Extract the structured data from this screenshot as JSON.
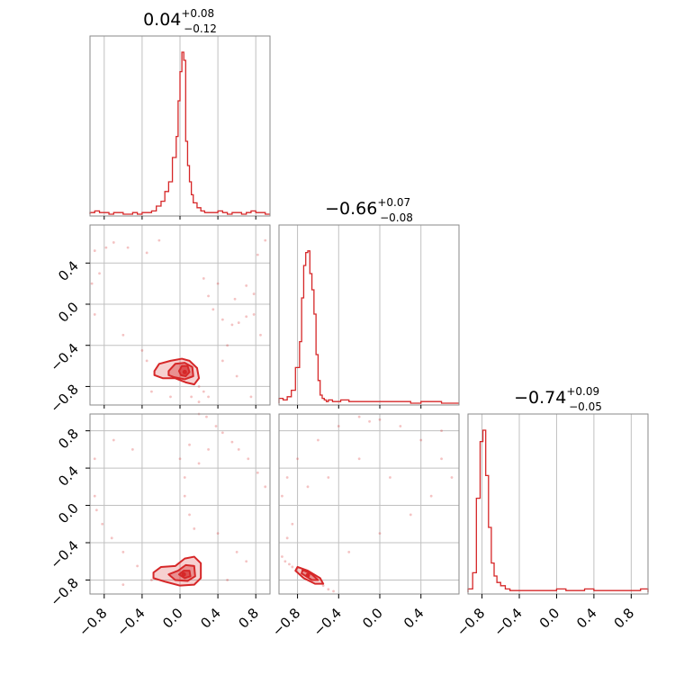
{
  "chart_data": {
    "type": "corner",
    "color": "#d62728",
    "titles": [
      {
        "median": "0.04",
        "plus": "+0.08",
        "minus": "−0.12"
      },
      {
        "median": "−0.66",
        "plus": "+0.07",
        "minus": "−0.08"
      },
      {
        "median": "−0.74",
        "plus": "+0.09",
        "minus": "−0.05"
      }
    ],
    "axes": {
      "p0": {
        "lim": [
          -0.95,
          0.95
        ],
        "ticks": [
          -0.8,
          -0.4,
          0.0,
          0.4,
          0.8
        ],
        "tick_labels": [
          "−0.8",
          "−0.4",
          "0.0",
          "0.4",
          "0.8"
        ]
      },
      "p1": {
        "lim": [
          -0.98,
          0.77
        ],
        "ticks": [
          -0.8,
          -0.4,
          0.0,
          0.4
        ],
        "tick_labels": [
          "−0.8",
          "−0.4",
          "0.0",
          "0.4"
        ]
      },
      "p2": {
        "lim": [
          -0.95,
          0.98
        ],
        "ticks": [
          -0.8,
          -0.4,
          0.0,
          0.4,
          0.8
        ],
        "tick_labels": [
          "−0.8",
          "−0.4",
          "0.0",
          "0.4",
          "0.8"
        ]
      }
    },
    "grid": true,
    "histograms": [
      {
        "param": "p0",
        "bins": [
          -0.95,
          -0.9,
          -0.85,
          -0.8,
          -0.75,
          -0.7,
          -0.65,
          -0.6,
          -0.55,
          -0.5,
          -0.45,
          -0.4,
          -0.35,
          -0.3,
          -0.25,
          -0.2,
          -0.16,
          -0.12,
          -0.08,
          -0.04,
          -0.02,
          0.0,
          0.02,
          0.04,
          0.06,
          0.08,
          0.1,
          0.12,
          0.14,
          0.18,
          0.22,
          0.26,
          0.3,
          0.35,
          0.4,
          0.45,
          0.5,
          0.55,
          0.6,
          0.65,
          0.7,
          0.75,
          0.8,
          0.85,
          0.9,
          0.95
        ],
        "counts": [
          1,
          2,
          1,
          1,
          0,
          1,
          1,
          0,
          0,
          1,
          0,
          1,
          1,
          2,
          5,
          8,
          14,
          20,
          35,
          48,
          70,
          88,
          100,
          95,
          45,
          30,
          20,
          12,
          7,
          4,
          2,
          1,
          1,
          1,
          2,
          1,
          0,
          1,
          1,
          0,
          1,
          2,
          1,
          1,
          0
        ],
        "ymax": 100
      },
      {
        "param": "p1",
        "bins": [
          -0.98,
          -0.94,
          -0.9,
          -0.86,
          -0.82,
          -0.78,
          -0.76,
          -0.74,
          -0.72,
          -0.7,
          -0.68,
          -0.66,
          -0.64,
          -0.62,
          -0.6,
          -0.58,
          -0.56,
          -0.54,
          -0.52,
          -0.5,
          -0.46,
          -0.42,
          -0.38,
          -0.3,
          -0.2,
          -0.1,
          0.0,
          0.1,
          0.2,
          0.3,
          0.4,
          0.5,
          0.6,
          0.77
        ],
        "counts": [
          3,
          2,
          4,
          8,
          22,
          38,
          65,
          85,
          93,
          94,
          80,
          70,
          55,
          30,
          14,
          5,
          3,
          2,
          1,
          2,
          1,
          1,
          2,
          1,
          1,
          1,
          1,
          1,
          1,
          0,
          1,
          1,
          0
        ],
        "ymax": 100
      },
      {
        "param": "p2",
        "bins": [
          -0.95,
          -0.9,
          -0.86,
          -0.82,
          -0.79,
          -0.76,
          -0.73,
          -0.7,
          -0.67,
          -0.64,
          -0.6,
          -0.55,
          -0.5,
          -0.45,
          -0.4,
          -0.3,
          -0.2,
          -0.1,
          0.0,
          0.1,
          0.2,
          0.3,
          0.4,
          0.5,
          0.6,
          0.7,
          0.8,
          0.9,
          0.98
        ],
        "counts": [
          2,
          12,
          58,
          93,
          100,
          72,
          40,
          18,
          10,
          6,
          4,
          2,
          1,
          1,
          1,
          1,
          1,
          1,
          2,
          1,
          1,
          2,
          1,
          1,
          1,
          1,
          1,
          2
        ],
        "ymax": 100
      }
    ],
    "contour_panels": [
      {
        "x_param": "p0",
        "y_param": "p1",
        "center": [
          0.05,
          -0.66
        ],
        "levels": [
          [
            [
              -0.27,
              -0.65
            ],
            [
              -0.22,
              -0.58
            ],
            [
              -0.1,
              -0.55
            ],
            [
              0.02,
              -0.53
            ],
            [
              0.1,
              -0.55
            ],
            [
              0.18,
              -0.62
            ],
            [
              0.2,
              -0.72
            ],
            [
              0.15,
              -0.78
            ],
            [
              0.06,
              -0.76
            ],
            [
              -0.05,
              -0.72
            ],
            [
              -0.18,
              -0.72
            ],
            [
              -0.27,
              -0.69
            ]
          ],
          [
            [
              -0.12,
              -0.65
            ],
            [
              -0.05,
              -0.58
            ],
            [
              0.05,
              -0.57
            ],
            [
              0.13,
              -0.61
            ],
            [
              0.14,
              -0.7
            ],
            [
              0.05,
              -0.73
            ],
            [
              -0.06,
              -0.71
            ],
            [
              -0.12,
              -0.69
            ]
          ],
          [
            [
              -0.01,
              -0.65
            ],
            [
              0.02,
              -0.6
            ],
            [
              0.08,
              -0.6
            ],
            [
              0.1,
              -0.66
            ],
            [
              0.06,
              -0.7
            ],
            [
              0.01,
              -0.69
            ]
          ]
        ],
        "scatter": [
          [
            -0.93,
            0.2
          ],
          [
            -0.9,
            0.52
          ],
          [
            -0.85,
            0.3
          ],
          [
            -0.9,
            -0.1
          ],
          [
            -0.78,
            0.55
          ],
          [
            -0.7,
            0.6
          ],
          [
            -0.55,
            0.55
          ],
          [
            -0.35,
            0.5
          ],
          [
            -0.22,
            0.62
          ],
          [
            0.25,
            0.25
          ],
          [
            0.3,
            0.08
          ],
          [
            0.35,
            -0.05
          ],
          [
            0.45,
            -0.15
          ],
          [
            0.55,
            -0.2
          ],
          [
            0.62,
            -0.18
          ],
          [
            0.7,
            -0.12
          ],
          [
            0.78,
            -0.1
          ],
          [
            0.85,
            -0.3
          ],
          [
            0.78,
            0.1
          ],
          [
            0.82,
            0.48
          ],
          [
            0.9,
            0.62
          ],
          [
            -0.6,
            -0.3
          ],
          [
            -0.4,
            -0.45
          ],
          [
            0.45,
            -0.55
          ],
          [
            0.6,
            -0.7
          ],
          [
            0.75,
            -0.9
          ],
          [
            0.3,
            -0.9
          ],
          [
            0.2,
            -0.95
          ],
          [
            0.12,
            -0.9
          ],
          [
            -0.1,
            -0.9
          ],
          [
            -0.3,
            -0.85
          ],
          [
            0.4,
            0.2
          ],
          [
            0.58,
            0.05
          ],
          [
            0.7,
            0.18
          ],
          [
            0.2,
            -0.8
          ],
          [
            0.25,
            -0.85
          ],
          [
            -0.35,
            -0.55
          ],
          [
            0.5,
            -0.4
          ]
        ]
      },
      {
        "x_param": "p0",
        "y_param": "p2",
        "center": [
          0.04,
          -0.74
        ],
        "levels": [
          [
            [
              -0.28,
              -0.72
            ],
            [
              -0.2,
              -0.66
            ],
            [
              -0.05,
              -0.65
            ],
            [
              0.05,
              -0.57
            ],
            [
              0.15,
              -0.55
            ],
            [
              0.22,
              -0.62
            ],
            [
              0.22,
              -0.78
            ],
            [
              0.15,
              -0.85
            ],
            [
              0.0,
              -0.86
            ],
            [
              -0.15,
              -0.82
            ],
            [
              -0.28,
              -0.78
            ]
          ],
          [
            [
              -0.12,
              -0.74
            ],
            [
              -0.02,
              -0.7
            ],
            [
              0.06,
              -0.64
            ],
            [
              0.15,
              -0.65
            ],
            [
              0.16,
              -0.76
            ],
            [
              0.08,
              -0.81
            ],
            [
              -0.05,
              -0.8
            ]
          ],
          [
            [
              -0.01,
              -0.74
            ],
            [
              0.04,
              -0.7
            ],
            [
              0.1,
              -0.7
            ],
            [
              0.11,
              -0.76
            ],
            [
              0.05,
              -0.78
            ]
          ]
        ],
        "scatter": [
          [
            0.2,
            0.98
          ],
          [
            0.28,
            0.95
          ],
          [
            0.38,
            0.85
          ],
          [
            0.45,
            0.78
          ],
          [
            0.55,
            0.68
          ],
          [
            0.62,
            0.6
          ],
          [
            0.72,
            0.5
          ],
          [
            0.82,
            0.35
          ],
          [
            0.9,
            0.2
          ],
          [
            -0.9,
            0.1
          ],
          [
            -0.88,
            -0.05
          ],
          [
            -0.82,
            -0.2
          ],
          [
            -0.72,
            -0.35
          ],
          [
            -0.6,
            -0.5
          ],
          [
            -0.45,
            -0.65
          ],
          [
            -0.3,
            -0.8
          ],
          [
            -0.9,
            0.5
          ],
          [
            -0.7,
            0.7
          ],
          [
            -0.5,
            0.6
          ],
          [
            0.0,
            0.5
          ],
          [
            0.05,
            0.3
          ],
          [
            0.05,
            0.1
          ],
          [
            0.1,
            -0.1
          ],
          [
            0.15,
            -0.25
          ],
          [
            0.4,
            -0.3
          ],
          [
            0.6,
            -0.5
          ],
          [
            0.7,
            -0.6
          ],
          [
            0.5,
            -0.8
          ],
          [
            -0.6,
            -0.85
          ],
          [
            0.3,
            0.6
          ],
          [
            0.1,
            0.65
          ],
          [
            0.2,
            0.45
          ]
        ]
      },
      {
        "x_param": "p1",
        "y_param": "p2",
        "center": [
          -0.7,
          -0.75
        ],
        "levels": [
          [
            [
              -0.8,
              -0.66
            ],
            [
              -0.7,
              -0.7
            ],
            [
              -0.58,
              -0.78
            ],
            [
              -0.55,
              -0.84
            ],
            [
              -0.63,
              -0.84
            ],
            [
              -0.74,
              -0.78
            ],
            [
              -0.82,
              -0.7
            ]
          ],
          [
            [
              -0.75,
              -0.69
            ],
            [
              -0.66,
              -0.74
            ],
            [
              -0.6,
              -0.8
            ],
            [
              -0.66,
              -0.8
            ],
            [
              -0.76,
              -0.73
            ]
          ]
        ],
        "scatter": [
          [
            -0.95,
            -0.55
          ],
          [
            -0.92,
            -0.6
          ],
          [
            -0.88,
            -0.63
          ],
          [
            -0.85,
            -0.66
          ],
          [
            -0.55,
            -0.86
          ],
          [
            -0.5,
            -0.9
          ],
          [
            -0.45,
            -0.92
          ],
          [
            -0.95,
            0.1
          ],
          [
            -0.9,
            0.3
          ],
          [
            -0.8,
            0.5
          ],
          [
            -0.6,
            0.7
          ],
          [
            -0.4,
            0.85
          ],
          [
            -0.2,
            0.95
          ],
          [
            0.0,
            0.92
          ],
          [
            0.2,
            0.85
          ],
          [
            0.4,
            0.7
          ],
          [
            0.6,
            0.5
          ],
          [
            0.7,
            0.3
          ],
          [
            -0.3,
            -0.5
          ],
          [
            0.0,
            -0.3
          ],
          [
            0.3,
            -0.1
          ],
          [
            0.5,
            0.1
          ],
          [
            -0.5,
            0.3
          ],
          [
            -0.2,
            0.5
          ],
          [
            0.1,
            0.3
          ],
          [
            -0.85,
            -0.2
          ],
          [
            -0.9,
            -0.35
          ],
          [
            0.6,
            0.8
          ],
          [
            -0.1,
            0.9
          ],
          [
            -0.7,
            0.2
          ]
        ]
      }
    ]
  }
}
